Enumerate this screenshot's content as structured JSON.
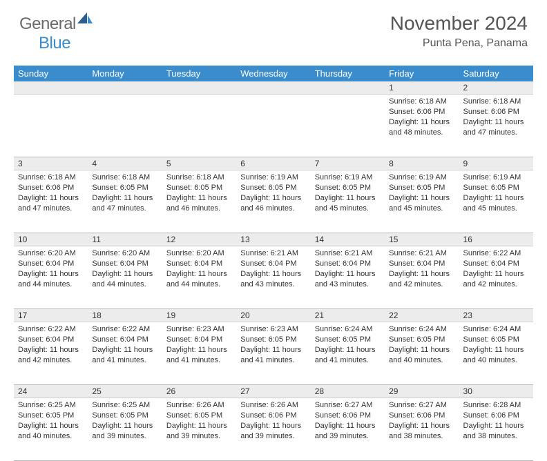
{
  "logo": {
    "text1": "General",
    "text2": "Blue"
  },
  "title": "November 2024",
  "location": "Punta Pena, Panama",
  "colors": {
    "header_bg": "#3b8ccc",
    "header_fg": "#ffffff",
    "daynum_bg": "#ececec",
    "border": "#b9b9b9",
    "text": "#333333",
    "logo_gray": "#6a6a6a",
    "logo_blue": "#3b8ccc"
  },
  "day_headers": [
    "Sunday",
    "Monday",
    "Tuesday",
    "Wednesday",
    "Thursday",
    "Friday",
    "Saturday"
  ],
  "weeks": [
    [
      {
        "num": "",
        "lines": []
      },
      {
        "num": "",
        "lines": []
      },
      {
        "num": "",
        "lines": []
      },
      {
        "num": "",
        "lines": []
      },
      {
        "num": "",
        "lines": []
      },
      {
        "num": "1",
        "lines": [
          "Sunrise: 6:18 AM",
          "Sunset: 6:06 PM",
          "Daylight: 11 hours and 48 minutes."
        ]
      },
      {
        "num": "2",
        "lines": [
          "Sunrise: 6:18 AM",
          "Sunset: 6:06 PM",
          "Daylight: 11 hours and 47 minutes."
        ]
      }
    ],
    [
      {
        "num": "3",
        "lines": [
          "Sunrise: 6:18 AM",
          "Sunset: 6:06 PM",
          "Daylight: 11 hours and 47 minutes."
        ]
      },
      {
        "num": "4",
        "lines": [
          "Sunrise: 6:18 AM",
          "Sunset: 6:05 PM",
          "Daylight: 11 hours and 47 minutes."
        ]
      },
      {
        "num": "5",
        "lines": [
          "Sunrise: 6:18 AM",
          "Sunset: 6:05 PM",
          "Daylight: 11 hours and 46 minutes."
        ]
      },
      {
        "num": "6",
        "lines": [
          "Sunrise: 6:19 AM",
          "Sunset: 6:05 PM",
          "Daylight: 11 hours and 46 minutes."
        ]
      },
      {
        "num": "7",
        "lines": [
          "Sunrise: 6:19 AM",
          "Sunset: 6:05 PM",
          "Daylight: 11 hours and 45 minutes."
        ]
      },
      {
        "num": "8",
        "lines": [
          "Sunrise: 6:19 AM",
          "Sunset: 6:05 PM",
          "Daylight: 11 hours and 45 minutes."
        ]
      },
      {
        "num": "9",
        "lines": [
          "Sunrise: 6:19 AM",
          "Sunset: 6:05 PM",
          "Daylight: 11 hours and 45 minutes."
        ]
      }
    ],
    [
      {
        "num": "10",
        "lines": [
          "Sunrise: 6:20 AM",
          "Sunset: 6:04 PM",
          "Daylight: 11 hours and 44 minutes."
        ]
      },
      {
        "num": "11",
        "lines": [
          "Sunrise: 6:20 AM",
          "Sunset: 6:04 PM",
          "Daylight: 11 hours and 44 minutes."
        ]
      },
      {
        "num": "12",
        "lines": [
          "Sunrise: 6:20 AM",
          "Sunset: 6:04 PM",
          "Daylight: 11 hours and 44 minutes."
        ]
      },
      {
        "num": "13",
        "lines": [
          "Sunrise: 6:21 AM",
          "Sunset: 6:04 PM",
          "Daylight: 11 hours and 43 minutes."
        ]
      },
      {
        "num": "14",
        "lines": [
          "Sunrise: 6:21 AM",
          "Sunset: 6:04 PM",
          "Daylight: 11 hours and 43 minutes."
        ]
      },
      {
        "num": "15",
        "lines": [
          "Sunrise: 6:21 AM",
          "Sunset: 6:04 PM",
          "Daylight: 11 hours and 42 minutes."
        ]
      },
      {
        "num": "16",
        "lines": [
          "Sunrise: 6:22 AM",
          "Sunset: 6:04 PM",
          "Daylight: 11 hours and 42 minutes."
        ]
      }
    ],
    [
      {
        "num": "17",
        "lines": [
          "Sunrise: 6:22 AM",
          "Sunset: 6:04 PM",
          "Daylight: 11 hours and 42 minutes."
        ]
      },
      {
        "num": "18",
        "lines": [
          "Sunrise: 6:22 AM",
          "Sunset: 6:04 PM",
          "Daylight: 11 hours and 41 minutes."
        ]
      },
      {
        "num": "19",
        "lines": [
          "Sunrise: 6:23 AM",
          "Sunset: 6:04 PM",
          "Daylight: 11 hours and 41 minutes."
        ]
      },
      {
        "num": "20",
        "lines": [
          "Sunrise: 6:23 AM",
          "Sunset: 6:05 PM",
          "Daylight: 11 hours and 41 minutes."
        ]
      },
      {
        "num": "21",
        "lines": [
          "Sunrise: 6:24 AM",
          "Sunset: 6:05 PM",
          "Daylight: 11 hours and 41 minutes."
        ]
      },
      {
        "num": "22",
        "lines": [
          "Sunrise: 6:24 AM",
          "Sunset: 6:05 PM",
          "Daylight: 11 hours and 40 minutes."
        ]
      },
      {
        "num": "23",
        "lines": [
          "Sunrise: 6:24 AM",
          "Sunset: 6:05 PM",
          "Daylight: 11 hours and 40 minutes."
        ]
      }
    ],
    [
      {
        "num": "24",
        "lines": [
          "Sunrise: 6:25 AM",
          "Sunset: 6:05 PM",
          "Daylight: 11 hours and 40 minutes."
        ]
      },
      {
        "num": "25",
        "lines": [
          "Sunrise: 6:25 AM",
          "Sunset: 6:05 PM",
          "Daylight: 11 hours and 39 minutes."
        ]
      },
      {
        "num": "26",
        "lines": [
          "Sunrise: 6:26 AM",
          "Sunset: 6:05 PM",
          "Daylight: 11 hours and 39 minutes."
        ]
      },
      {
        "num": "27",
        "lines": [
          "Sunrise: 6:26 AM",
          "Sunset: 6:06 PM",
          "Daylight: 11 hours and 39 minutes."
        ]
      },
      {
        "num": "28",
        "lines": [
          "Sunrise: 6:27 AM",
          "Sunset: 6:06 PM",
          "Daylight: 11 hours and 39 minutes."
        ]
      },
      {
        "num": "29",
        "lines": [
          "Sunrise: 6:27 AM",
          "Sunset: 6:06 PM",
          "Daylight: 11 hours and 38 minutes."
        ]
      },
      {
        "num": "30",
        "lines": [
          "Sunrise: 6:28 AM",
          "Sunset: 6:06 PM",
          "Daylight: 11 hours and 38 minutes."
        ]
      }
    ]
  ]
}
